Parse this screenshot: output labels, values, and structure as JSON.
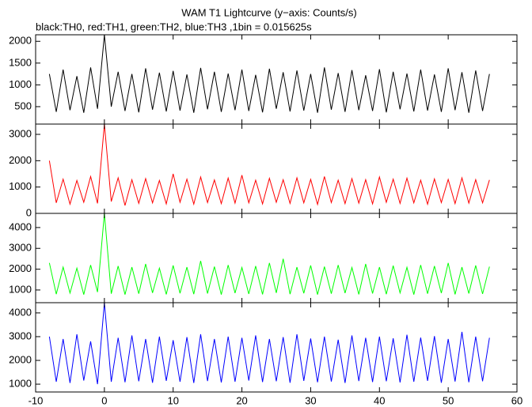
{
  "chart_data": [
    {
      "type": "line",
      "title": "WAM T1 Lightcurve (y−axis: Counts/s)",
      "subtitle": "black:TH0, red:TH1, green:TH2, blue:TH3 ,1bin = 0.015625s",
      "x": [
        -8,
        -7,
        -6,
        -5,
        -4,
        -3,
        -2,
        -1,
        0,
        1,
        2,
        3,
        4,
        5,
        6,
        7,
        8,
        9,
        10,
        11,
        12,
        13,
        14,
        15,
        16,
        17,
        18,
        19,
        20,
        21,
        22,
        23,
        24,
        25,
        26,
        27,
        28,
        29,
        30,
        31,
        32,
        33,
        34,
        35,
        36,
        37,
        38,
        39,
        40,
        41,
        42,
        43,
        44,
        45,
        46,
        47,
        48,
        49,
        50,
        51,
        52,
        53,
        54,
        55,
        56
      ],
      "series": [
        {
          "name": "TH0",
          "color": "#000000",
          "values": [
            1250,
            380,
            1350,
            420,
            1200,
            360,
            1400,
            450,
            2150,
            500,
            1300,
            400,
            1250,
            370,
            1380,
            430,
            1280,
            390,
            1320,
            410,
            1240,
            360,
            1390,
            440,
            1300,
            380,
            1260,
            420,
            1350,
            400,
            1230,
            370,
            1370,
            450,
            1290,
            390,
            1330,
            410,
            1250,
            360,
            1400,
            430,
            1270,
            380,
            1340,
            420,
            1220,
            400,
            1360,
            370,
            1300,
            440,
            1260,
            390,
            1350,
            410,
            1240,
            380,
            1380,
            420,
            1290,
            360,
            1330,
            400,
            1250
          ]
        }
      ],
      "xlim": [
        -10,
        60
      ],
      "xticks": [
        -10,
        0,
        10,
        20,
        30,
        40,
        50,
        60
      ],
      "ylim": [
        100,
        2150
      ],
      "yticks": [
        500,
        1000,
        1500,
        2000
      ]
    },
    {
      "type": "line",
      "x": [
        -8,
        -7,
        -6,
        -5,
        -4,
        -3,
        -2,
        -1,
        0,
        1,
        2,
        3,
        4,
        5,
        6,
        7,
        8,
        9,
        10,
        11,
        12,
        13,
        14,
        15,
        16,
        17,
        18,
        19,
        20,
        21,
        22,
        23,
        24,
        25,
        26,
        27,
        28,
        29,
        30,
        31,
        32,
        33,
        34,
        35,
        36,
        37,
        38,
        39,
        40,
        41,
        42,
        43,
        44,
        45,
        46,
        47,
        48,
        49,
        50,
        51,
        52,
        53,
        54,
        55,
        56
      ],
      "series": [
        {
          "name": "TH1",
          "color": "#ff0000",
          "values": [
            2000,
            400,
            1300,
            350,
            1250,
            420,
            1400,
            380,
            3390,
            450,
            1350,
            300,
            1280,
            380,
            1320,
            400,
            1250,
            360,
            1500,
            420,
            1300,
            350,
            1380,
            410,
            1270,
            370,
            1340,
            390,
            1450,
            400,
            1260,
            360,
            1330,
            420,
            1280,
            380,
            1350,
            400,
            1290,
            340,
            1400,
            410,
            1260,
            370,
            1320,
            390,
            1280,
            360,
            1380,
            420,
            1300,
            380,
            1340,
            400,
            1260,
            350,
            1310,
            410,
            1290,
            370,
            1350,
            390,
            1280,
            400,
            1270
          ]
        }
      ],
      "xlim": [
        -10,
        60
      ],
      "xticks": [
        -10,
        0,
        10,
        20,
        30,
        40,
        50,
        60
      ],
      "ylim": [
        0,
        3390
      ],
      "yticks": [
        0,
        1000,
        2000,
        3000
      ]
    },
    {
      "type": "line",
      "x": [
        -8,
        -7,
        -6,
        -5,
        -4,
        -3,
        -2,
        -1,
        0,
        1,
        2,
        3,
        4,
        5,
        6,
        7,
        8,
        9,
        10,
        11,
        12,
        13,
        14,
        15,
        16,
        17,
        18,
        19,
        20,
        21,
        22,
        23,
        24,
        25,
        26,
        27,
        28,
        29,
        30,
        31,
        32,
        33,
        34,
        35,
        36,
        37,
        38,
        39,
        40,
        41,
        42,
        43,
        44,
        45,
        46,
        47,
        48,
        49,
        50,
        51,
        52,
        53,
        54,
        55,
        56
      ],
      "series": [
        {
          "name": "TH2",
          "color": "#00ff00",
          "values": [
            2300,
            800,
            2100,
            850,
            2050,
            780,
            2200,
            900,
            4680,
            820,
            2150,
            780,
            2100,
            820,
            2250,
            860,
            2050,
            790,
            2180,
            840,
            2100,
            800,
            2400,
            830,
            2120,
            780,
            2200,
            850,
            2080,
            810,
            2150,
            790,
            2300,
            860,
            2500,
            800,
            2100,
            840,
            2180,
            780,
            2120,
            820,
            2200,
            850,
            2080,
            790,
            2250,
            830,
            2100,
            800,
            2170,
            860,
            2090,
            780,
            2200,
            820,
            2150,
            850,
            2300,
            790,
            2100,
            830,
            2180,
            810,
            2120
          ]
        }
      ],
      "xlim": [
        -10,
        60
      ],
      "xticks": [
        -10,
        0,
        10,
        20,
        30,
        40,
        50,
        60
      ],
      "ylim": [
        390,
        4680
      ],
      "yticks": [
        1000,
        2000,
        3000,
        4000
      ]
    },
    {
      "type": "line",
      "x": [
        -8,
        -7,
        -6,
        -5,
        -4,
        -3,
        -2,
        -1,
        0,
        1,
        2,
        3,
        4,
        5,
        6,
        7,
        8,
        9,
        10,
        11,
        12,
        13,
        14,
        15,
        16,
        17,
        18,
        19,
        20,
        21,
        22,
        23,
        24,
        25,
        26,
        27,
        28,
        29,
        30,
        31,
        32,
        33,
        34,
        35,
        36,
        37,
        38,
        39,
        40,
        41,
        42,
        43,
        44,
        45,
        46,
        47,
        48,
        49,
        50,
        51,
        52,
        53,
        54,
        55,
        56
      ],
      "series": [
        {
          "name": "TH3",
          "color": "#0000ff",
          "values": [
            3000,
            1100,
            2900,
            1050,
            3100,
            1150,
            2800,
            1000,
            4430,
            1100,
            2950,
            1080,
            3050,
            1120,
            2900,
            1060,
            3000,
            1140,
            2850,
            1100,
            2980,
            1050,
            3100,
            1130,
            2900,
            1070,
            3000,
            1100,
            2950,
            1150,
            3050,
            1090,
            2900,
            1120,
            2980,
            1060,
            3100,
            1140,
            2920,
            1080,
            3000,
            1110,
            2870,
            1050,
            3050,
            1130,
            2950,
            1090,
            3000,
            1120,
            2930,
            1070,
            3080,
            1100,
            2960,
            1140,
            3020,
            1060,
            2900,
            1110,
            3200,
            1080,
            3000,
            1120,
            2950
          ]
        }
      ],
      "xlim": [
        -10,
        60
      ],
      "xticks": [
        -10,
        0,
        10,
        20,
        30,
        40,
        50,
        60
      ],
      "ylim": [
        670,
        4430
      ],
      "yticks": [
        1000,
        2000,
        3000,
        4000
      ]
    }
  ]
}
